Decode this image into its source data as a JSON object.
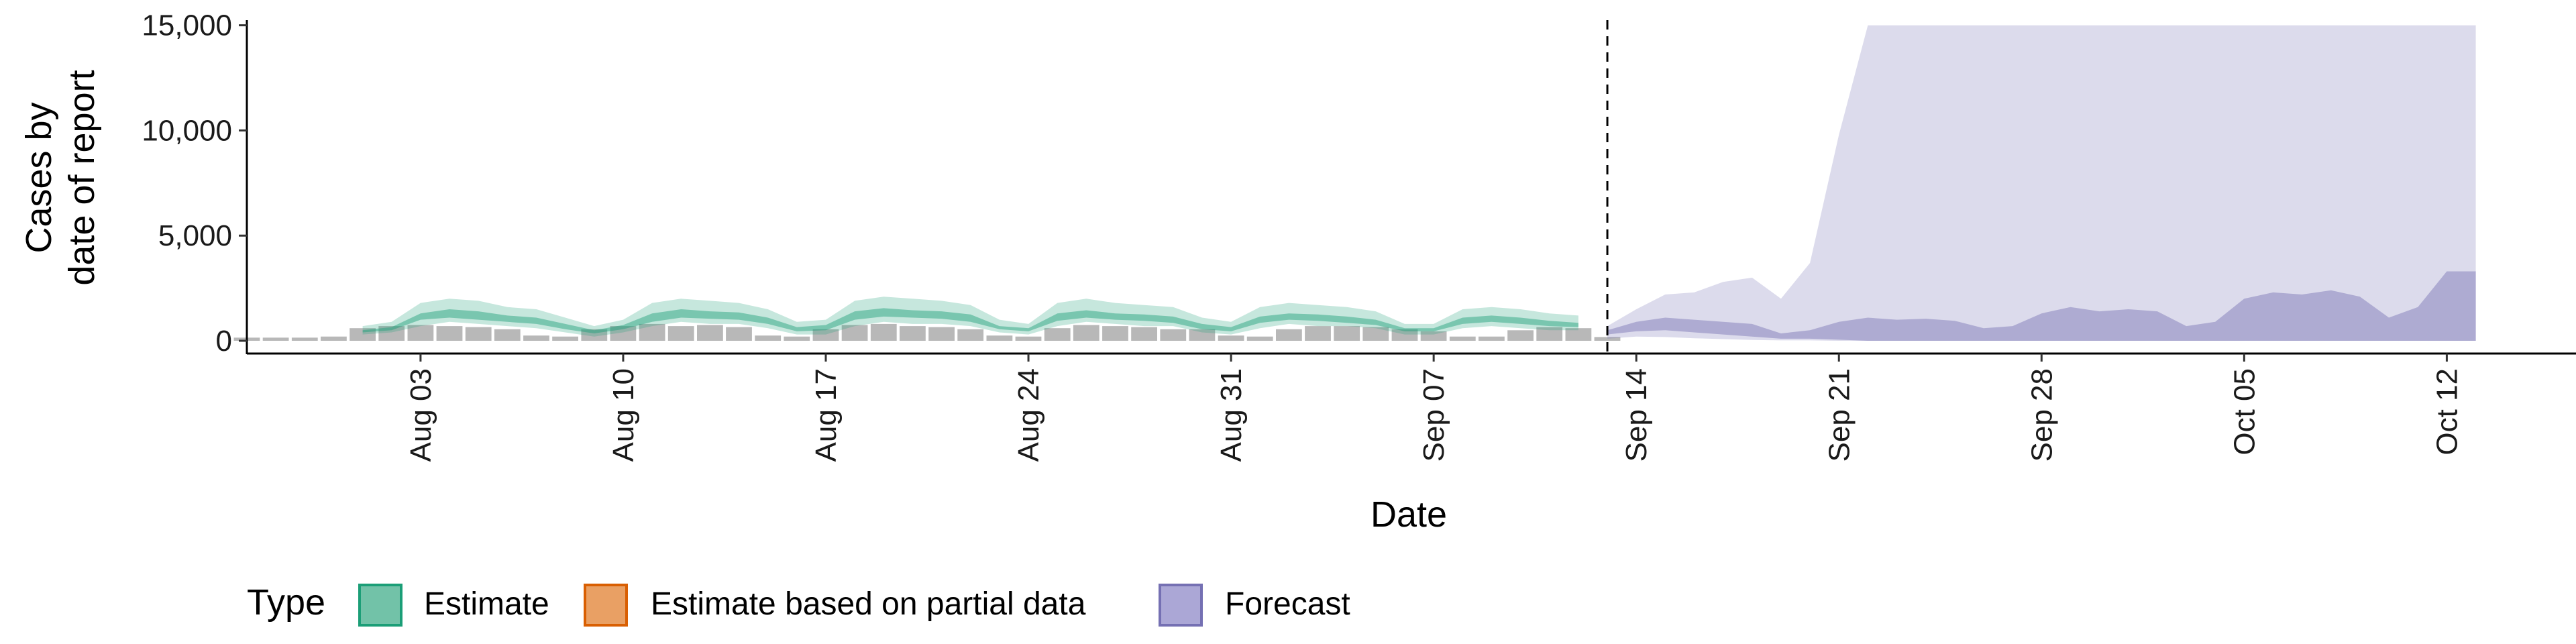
{
  "chart_data": {
    "type": "area",
    "title": "",
    "xlabel": "Date",
    "ylabel_lines": [
      "Cases by",
      "date of report"
    ],
    "ylim": [
      0,
      15500
    ],
    "y_ticks": [
      0,
      5000,
      10000,
      15000
    ],
    "y_tick_labels": [
      "0",
      "5,000",
      "10,000",
      "15,000"
    ],
    "x_range": [
      "2025-07-28",
      "2025-10-16"
    ],
    "x_ticks": [
      "2025-08-03",
      "2025-08-10",
      "2025-08-17",
      "2025-08-24",
      "2025-08-31",
      "2025-09-07",
      "2025-09-14",
      "2025-09-21",
      "2025-09-28",
      "2025-10-05",
      "2025-10-12"
    ],
    "x_tick_labels": [
      "Aug 03",
      "Aug 10",
      "Aug 17",
      "Aug 24",
      "Aug 31",
      "Sep 07",
      "Sep 14",
      "Sep 21",
      "Sep 28",
      "Oct 05",
      "Oct 12"
    ],
    "vline_date": "2025-09-13",
    "grid": false,
    "legend": {
      "title": "Type",
      "position": "bottom",
      "entries": [
        {
          "label": "Estimate",
          "fill": "#72c2a8",
          "stroke": "#1b9e77"
        },
        {
          "label": "Estimate based on partial data",
          "fill": "#e9a064",
          "stroke": "#d95f02"
        },
        {
          "label": "Forecast",
          "fill": "#aba7d6",
          "stroke": "#7570b3"
        }
      ]
    },
    "reported_cases": {
      "color": "#a0a0a0",
      "x": [
        "2025-07-28",
        "2025-07-29",
        "2025-07-30",
        "2025-07-31",
        "2025-08-01",
        "2025-08-02",
        "2025-08-03",
        "2025-08-04",
        "2025-08-05",
        "2025-08-06",
        "2025-08-07",
        "2025-08-08",
        "2025-08-09",
        "2025-08-10",
        "2025-08-11",
        "2025-08-12",
        "2025-08-13",
        "2025-08-14",
        "2025-08-15",
        "2025-08-16",
        "2025-08-17",
        "2025-08-18",
        "2025-08-19",
        "2025-08-20",
        "2025-08-21",
        "2025-08-22",
        "2025-08-23",
        "2025-08-24",
        "2025-08-25",
        "2025-08-26",
        "2025-08-27",
        "2025-08-28",
        "2025-08-29",
        "2025-08-30",
        "2025-08-31",
        "2025-09-01",
        "2025-09-02",
        "2025-09-03",
        "2025-09-04",
        "2025-09-05",
        "2025-09-06",
        "2025-09-07",
        "2025-09-08",
        "2025-09-09",
        "2025-09-10",
        "2025-09-11",
        "2025-09-12",
        "2025-09-13"
      ],
      "values": [
        150,
        150,
        150,
        200,
        600,
        700,
        750,
        700,
        650,
        550,
        250,
        200,
        550,
        700,
        800,
        700,
        750,
        650,
        250,
        200,
        550,
        750,
        800,
        700,
        650,
        550,
        250,
        200,
        600,
        750,
        700,
        650,
        550,
        550,
        250,
        200,
        550,
        700,
        700,
        650,
        550,
        450,
        200,
        200,
        500,
        650,
        600,
        180
      ]
    },
    "series": [
      {
        "name": "Estimate",
        "color": "#1b9e77",
        "x": [
          "2025-08-01",
          "2025-08-02",
          "2025-08-03",
          "2025-08-04",
          "2025-08-05",
          "2025-08-06",
          "2025-08-07",
          "2025-08-08",
          "2025-08-09",
          "2025-08-10",
          "2025-08-11",
          "2025-08-12",
          "2025-08-13",
          "2025-08-14",
          "2025-08-15",
          "2025-08-16",
          "2025-08-17",
          "2025-08-18",
          "2025-08-19",
          "2025-08-20",
          "2025-08-21",
          "2025-08-22",
          "2025-08-23",
          "2025-08-24",
          "2025-08-25",
          "2025-08-26",
          "2025-08-27",
          "2025-08-28",
          "2025-08-29",
          "2025-08-30",
          "2025-08-31",
          "2025-09-01",
          "2025-09-02",
          "2025-09-03",
          "2025-09-04",
          "2025-09-05",
          "2025-09-06",
          "2025-09-07",
          "2025-09-08",
          "2025-09-09",
          "2025-09-10",
          "2025-09-11",
          "2025-09-12"
        ],
        "upper90": [
          700,
          900,
          1800,
          2000,
          1900,
          1600,
          1500,
          1100,
          700,
          1000,
          1800,
          2000,
          1900,
          1800,
          1500,
          900,
          1000,
          1900,
          2100,
          2000,
          1900,
          1700,
          1000,
          800,
          1800,
          2000,
          1800,
          1700,
          1600,
          1100,
          900,
          1600,
          1800,
          1700,
          1600,
          1400,
          800,
          800,
          1500,
          1600,
          1500,
          1300,
          1200
        ],
        "lower90": [
          300,
          400,
          700,
          900,
          800,
          700,
          600,
          400,
          200,
          400,
          700,
          900,
          800,
          800,
          600,
          300,
          300,
          700,
          900,
          800,
          800,
          700,
          400,
          300,
          700,
          900,
          800,
          700,
          700,
          400,
          300,
          600,
          800,
          700,
          700,
          600,
          300,
          300,
          600,
          700,
          600,
          500,
          500
        ],
        "upper50": [
          500,
          650,
          1300,
          1500,
          1400,
          1200,
          1100,
          800,
          500,
          750,
          1300,
          1500,
          1400,
          1350,
          1100,
          650,
          750,
          1400,
          1550,
          1450,
          1400,
          1250,
          700,
          600,
          1300,
          1450,
          1300,
          1250,
          1150,
          800,
          650,
          1150,
          1300,
          1250,
          1150,
          1000,
          600,
          600,
          1100,
          1200,
          1100,
          950,
          850
        ],
        "lower50": [
          400,
          500,
          1000,
          1100,
          1000,
          900,
          800,
          550,
          350,
          550,
          900,
          1100,
          1050,
          1000,
          800,
          450,
          500,
          1000,
          1150,
          1100,
          1050,
          900,
          550,
          450,
          950,
          1100,
          1000,
          950,
          850,
          550,
          450,
          850,
          1000,
          950,
          850,
          750,
          450,
          450,
          800,
          900,
          800,
          700,
          650
        ]
      },
      {
        "name": "Forecast",
        "color": "#7570b3",
        "x": [
          "2025-09-13",
          "2025-09-14",
          "2025-09-15",
          "2025-09-16",
          "2025-09-17",
          "2025-09-18",
          "2025-09-19",
          "2025-09-20",
          "2025-09-21",
          "2025-09-22",
          "2025-09-23",
          "2025-09-24",
          "2025-09-25",
          "2025-09-26",
          "2025-09-27",
          "2025-09-28",
          "2025-09-29",
          "2025-09-30",
          "2025-10-01",
          "2025-10-02",
          "2025-10-03",
          "2025-10-04",
          "2025-10-05",
          "2025-10-06",
          "2025-10-07",
          "2025-10-08",
          "2025-10-09",
          "2025-10-10",
          "2025-10-11",
          "2025-10-12",
          "2025-10-13"
        ],
        "upper90": [
          700,
          1500,
          2200,
          2300,
          2800,
          3000,
          2000,
          3700,
          9800,
          15000,
          15000,
          15000,
          15000,
          15000,
          15000,
          15000,
          15000,
          15000,
          15000,
          15000,
          15000,
          15000,
          15000,
          15000,
          15000,
          15000,
          15000,
          15000,
          15000,
          15000,
          15000
        ],
        "lower90": [
          100,
          200,
          180,
          120,
          80,
          40,
          20,
          20,
          0,
          0,
          0,
          0,
          0,
          0,
          0,
          0,
          0,
          0,
          0,
          0,
          0,
          0,
          0,
          0,
          0,
          0,
          0,
          0,
          0,
          0,
          0
        ],
        "upper50": [
          500,
          900,
          1100,
          1000,
          900,
          800,
          350,
          500,
          900,
          1100,
          1000,
          1050,
          950,
          600,
          700,
          1300,
          1600,
          1400,
          1500,
          1400,
          700,
          900,
          2000,
          2300,
          2200,
          2400,
          2100,
          1100,
          1600,
          3300,
          3300
        ],
        "lower50": [
          300,
          450,
          500,
          400,
          300,
          200,
          100,
          100,
          50,
          0,
          0,
          0,
          0,
          0,
          0,
          0,
          0,
          0,
          0,
          0,
          0,
          0,
          0,
          0,
          0,
          0,
          0,
          0,
          0,
          0,
          0
        ]
      }
    ]
  }
}
